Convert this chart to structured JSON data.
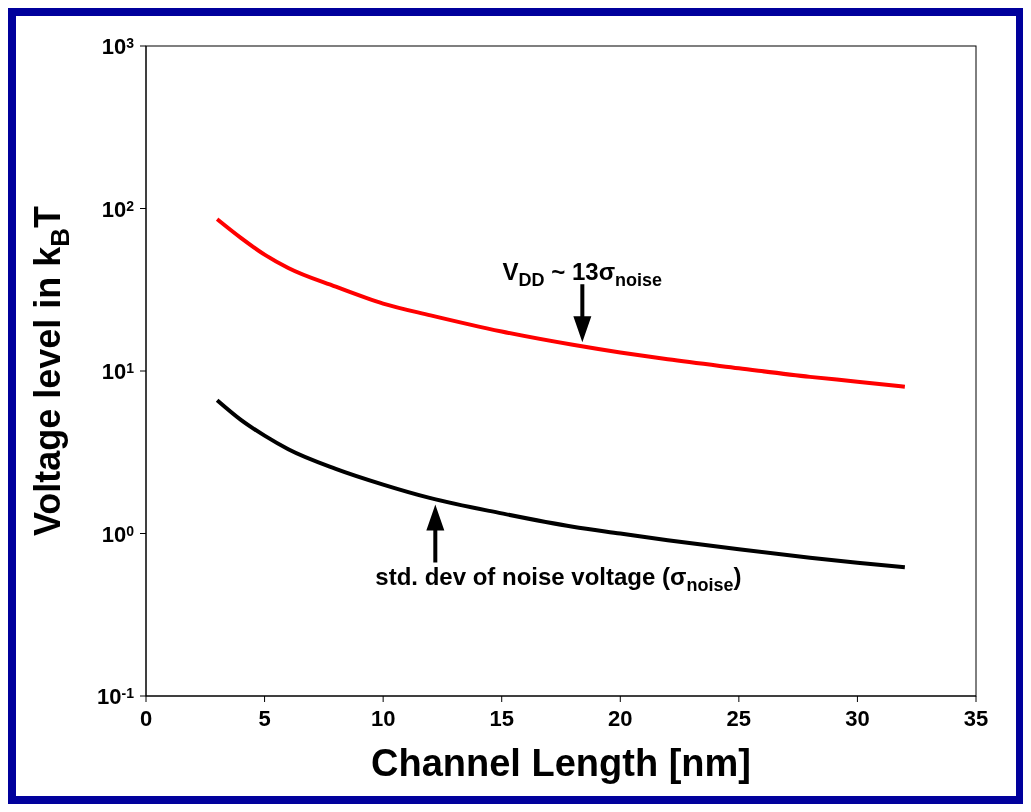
{
  "chart_data": {
    "type": "line",
    "xlabel": "Channel Length [nm]",
    "ylabel": "Voltage level in k$_{B}$T",
    "log": "y",
    "marker": "none",
    "line_style": "solid",
    "xlim": [
      0,
      35
    ],
    "xticks": [
      0,
      5,
      10,
      15,
      20,
      25,
      30,
      35
    ],
    "ylim": [
      0.1,
      1000
    ],
    "yticks": [
      {
        "value": 0.1,
        "label": "10$^{-1}$"
      },
      {
        "value": 1,
        "label": "10$^{0}$"
      },
      {
        "value": 10,
        "label": "10$^{1}$"
      },
      {
        "value": 100,
        "label": "10$^{2}$"
      },
      {
        "value": 1000,
        "label": "10$^{3}$"
      }
    ],
    "x": [
      3,
      4,
      5,
      6,
      8,
      10,
      12,
      15,
      18,
      20,
      22,
      25,
      28,
      30,
      32
    ],
    "series": [
      {
        "color": "#ff0000",
        "values": [
          86,
          66,
          52,
          43,
          33,
          26,
          22,
          17.5,
          14.5,
          13,
          11.8,
          10.4,
          9.2,
          8.6,
          8.0
        ]
      },
      {
        "color": "#000000",
        "values": [
          6.6,
          5.0,
          4.0,
          3.3,
          2.5,
          2.0,
          1.65,
          1.33,
          1.1,
          1.0,
          0.91,
          0.8,
          0.71,
          0.66,
          0.62
        ]
      }
    ],
    "annotations": [
      {
        "text": "V$_{DD}$ ~ 13σ$_{noise}$",
        "x": 18.4,
        "y": 14.6
      },
      {
        "text": "std. dev of noise voltage (σ$_{noise}$)",
        "x": 12.2,
        "y": 1.55
      }
    ]
  }
}
